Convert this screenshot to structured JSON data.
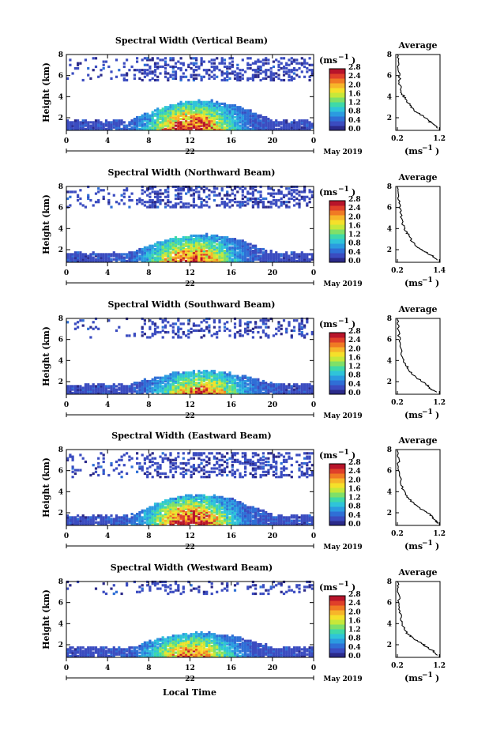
{
  "footer": {
    "xlabel": "Local Time"
  },
  "colorbar": {
    "colors": [
      "#2b2a8a",
      "#3b4cc0",
      "#2f6fd6",
      "#2b9be0",
      "#2fc4d9",
      "#3fd9a8",
      "#7fe068",
      "#c6e83a",
      "#f5e02a",
      "#f7b52a",
      "#f07a24",
      "#e0402a",
      "#b8142a"
    ]
  },
  "chart_data": [
    {
      "type": "heatmap",
      "title": "Spectral Width (Vertical Beam)",
      "ylabel": "Height (km)",
      "x_ticks": [
        "0",
        "4",
        "8",
        "12",
        "16",
        "20",
        "0"
      ],
      "xlim": [
        0,
        24
      ],
      "y_ticks": [
        "2",
        "4",
        "6",
        "8"
      ],
      "ylim": [
        0.8,
        8
      ],
      "date_label": "22",
      "month_label": "May 2019",
      "colorbar_label": "(ms",
      "colorbar_exp": "−1",
      "colorbar_close": ")",
      "colorbar_ticks": [
        "0.0",
        "0.4",
        "0.8",
        "1.2",
        "1.6",
        "2.0",
        "2.4",
        "2.8"
      ],
      "clim": [
        0,
        2.8
      ],
      "avg_title": "Average",
      "avg_xticks": [
        "0.2",
        "1.2"
      ],
      "avg_xlim": [
        0.2,
        1.2
      ],
      "avg_yticks": [
        "2",
        "4",
        "6",
        "8"
      ],
      "avg_xlabel": "(ms",
      "avg_profile": [
        [
          1.18,
          1.0
        ],
        [
          1.05,
          1.4
        ],
        [
          0.95,
          1.7
        ],
        [
          0.8,
          2.2
        ],
        [
          0.62,
          2.6
        ],
        [
          0.5,
          3.2
        ],
        [
          0.38,
          3.8
        ],
        [
          0.3,
          4.4
        ],
        [
          0.26,
          5.2
        ],
        [
          0.24,
          6.2
        ],
        [
          0.22,
          7.2
        ],
        [
          0.2,
          8.0
        ]
      ],
      "layers": {
        "top": 3.5,
        "peak_center": 12,
        "peak_height": 2.9,
        "upper_band": [
          5.3,
          7.6
        ],
        "upper_density": 0.35
      }
    },
    {
      "type": "heatmap",
      "title": "Spectral Width (Northward Beam)",
      "ylabel": "Height (km)",
      "x_ticks": [
        "0",
        "4",
        "8",
        "12",
        "16",
        "20",
        "0"
      ],
      "xlim": [
        0,
        24
      ],
      "y_ticks": [
        "2",
        "4",
        "6",
        "8"
      ],
      "ylim": [
        0.8,
        8
      ],
      "date_label": "22",
      "month_label": "May 2019",
      "colorbar_label": "(ms",
      "colorbar_exp": "−1",
      "colorbar_close": ")",
      "colorbar_ticks": [
        "0.0",
        "0.4",
        "0.8",
        "1.2",
        "1.6",
        "2.0",
        "2.4",
        "2.8"
      ],
      "clim": [
        0,
        2.8
      ],
      "avg_title": "Average",
      "avg_xticks": [
        "0.2",
        "1.4"
      ],
      "avg_xlim": [
        0.2,
        1.4
      ],
      "avg_yticks": [
        "2",
        "4",
        "6",
        "8"
      ],
      "avg_xlabel": "(ms",
      "avg_profile": [
        [
          1.35,
          1.0
        ],
        [
          1.2,
          1.4
        ],
        [
          1.0,
          1.8
        ],
        [
          0.8,
          2.2
        ],
        [
          0.6,
          2.8
        ],
        [
          0.55,
          3.3
        ],
        [
          0.42,
          3.8
        ],
        [
          0.35,
          4.5
        ],
        [
          0.3,
          5.4
        ],
        [
          0.26,
          6.3
        ],
        [
          0.22,
          7.2
        ],
        [
          0.2,
          8.0
        ]
      ],
      "layers": {
        "top": 3.3,
        "peak_center": 12,
        "peak_height": 2.6,
        "upper_band": [
          5.8,
          8.0
        ],
        "upper_density": 0.4
      }
    },
    {
      "type": "heatmap",
      "title": "Spectral Width (Southward Beam)",
      "ylabel": "Height (km)",
      "x_ticks": [
        "0",
        "4",
        "8",
        "12",
        "16",
        "20",
        "0"
      ],
      "xlim": [
        0,
        24
      ],
      "y_ticks": [
        "2",
        "4",
        "6",
        "8"
      ],
      "ylim": [
        0.8,
        8
      ],
      "date_label": "22",
      "month_label": "May 2019",
      "colorbar_label": "(ms",
      "colorbar_exp": "−1",
      "colorbar_close": ")",
      "colorbar_ticks": [
        "0.0",
        "0.4",
        "0.8",
        "1.2",
        "1.6",
        "2.0",
        "2.4",
        "2.8"
      ],
      "clim": [
        0,
        2.8
      ],
      "avg_title": "Average",
      "avg_xticks": [
        "0.2",
        "1.2"
      ],
      "avg_xlim": [
        0.2,
        1.2
      ],
      "avg_yticks": [
        "2",
        "4",
        "6",
        "8"
      ],
      "avg_xlabel": "(ms",
      "avg_profile": [
        [
          1.15,
          1.0
        ],
        [
          1.0,
          1.3
        ],
        [
          0.9,
          1.7
        ],
        [
          0.75,
          2.1
        ],
        [
          0.6,
          2.6
        ],
        [
          0.5,
          3.0
        ],
        [
          0.4,
          3.6
        ],
        [
          0.32,
          4.3
        ],
        [
          0.28,
          5.2
        ],
        [
          0.24,
          6.2
        ],
        [
          0.22,
          7.2
        ],
        [
          0.2,
          8.0
        ]
      ],
      "layers": {
        "top": 2.9,
        "peak_center": 13,
        "peak_height": 2.3,
        "upper_band": [
          6.0,
          8.0
        ],
        "upper_density": 0.25
      }
    },
    {
      "type": "heatmap",
      "title": "Spectral Width (Eastward Beam)",
      "ylabel": "Height (km)",
      "x_ticks": [
        "0",
        "4",
        "8",
        "12",
        "16",
        "20",
        "0"
      ],
      "xlim": [
        0,
        24
      ],
      "y_ticks": [
        "2",
        "4",
        "6",
        "8"
      ],
      "ylim": [
        0.8,
        8
      ],
      "date_label": "22",
      "month_label": "May 2019",
      "colorbar_label": "(ms",
      "colorbar_exp": "−1",
      "colorbar_close": ")",
      "colorbar_ticks": [
        "0.0",
        "0.4",
        "0.8",
        "1.2",
        "1.6",
        "2.0",
        "2.4",
        "2.8"
      ],
      "clim": [
        0,
        2.8
      ],
      "avg_title": "Average",
      "avg_xticks": [
        "0.2",
        "1.2"
      ],
      "avg_xlim": [
        0.2,
        1.2
      ],
      "avg_yticks": [
        "2",
        "4",
        "6",
        "8"
      ],
      "avg_xlabel": "(ms",
      "avg_profile": [
        [
          1.15,
          1.0
        ],
        [
          1.1,
          1.3
        ],
        [
          1.0,
          1.7
        ],
        [
          0.9,
          2.1
        ],
        [
          0.7,
          2.5
        ],
        [
          0.55,
          3.0
        ],
        [
          0.42,
          3.6
        ],
        [
          0.32,
          4.3
        ],
        [
          0.27,
          5.2
        ],
        [
          0.24,
          6.2
        ],
        [
          0.22,
          7.2
        ],
        [
          0.2,
          8.0
        ]
      ],
      "layers": {
        "top": 3.6,
        "peak_center": 12,
        "peak_height": 3.0,
        "upper_band": [
          5.2,
          7.6
        ],
        "upper_density": 0.35
      }
    },
    {
      "type": "heatmap",
      "title": "Spectral Width (Westward Beam)",
      "ylabel": "Height (km)",
      "x_ticks": [
        "0",
        "4",
        "8",
        "12",
        "16",
        "20",
        "0"
      ],
      "xlim": [
        0,
        24
      ],
      "y_ticks": [
        "2",
        "4",
        "6",
        "8"
      ],
      "ylim": [
        0.8,
        8
      ],
      "date_label": "22",
      "month_label": "May 2019",
      "colorbar_label": "(ms",
      "colorbar_exp": "−1",
      "colorbar_close": ")",
      "colorbar_ticks": [
        "0.0",
        "0.4",
        "0.8",
        "1.2",
        "1.6",
        "2.0",
        "2.4",
        "2.8"
      ],
      "clim": [
        0,
        2.8
      ],
      "avg_title": "Average",
      "avg_xticks": [
        "0.2",
        "1.2"
      ],
      "avg_xlim": [
        0.2,
        1.2
      ],
      "avg_yticks": [
        "2",
        "4",
        "6",
        "8"
      ],
      "avg_xlabel": "(ms",
      "avg_profile": [
        [
          1.15,
          1.0
        ],
        [
          1.05,
          1.4
        ],
        [
          0.9,
          1.8
        ],
        [
          0.75,
          2.2
        ],
        [
          0.58,
          2.6
        ],
        [
          0.45,
          3.0
        ],
        [
          0.36,
          3.6
        ],
        [
          0.3,
          4.3
        ],
        [
          0.26,
          5.2
        ],
        [
          0.24,
          6.2
        ],
        [
          0.22,
          7.2
        ],
        [
          0.2,
          8.0
        ]
      ],
      "layers": {
        "top": 3.0,
        "peak_center": 12,
        "peak_height": 2.3,
        "upper_band": [
          6.6,
          8.0
        ],
        "upper_density": 0.2
      }
    }
  ]
}
